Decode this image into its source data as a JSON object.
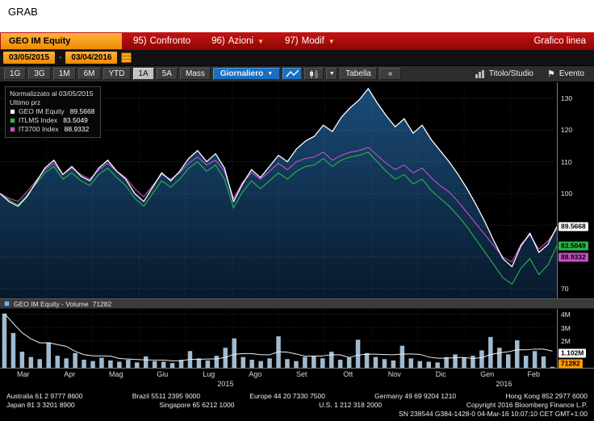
{
  "window": {
    "title": "GRAB"
  },
  "header": {
    "security": "GEO IM Equity",
    "menus": [
      {
        "key": "95)",
        "label": "Confronto"
      },
      {
        "key": "96)",
        "label": "Azioni"
      },
      {
        "key": "97)",
        "label": "Modif"
      }
    ],
    "mode": "Grafico linea"
  },
  "dates": {
    "start": "03/05/2015",
    "end": "03/04/2016"
  },
  "toolbar": {
    "ranges": [
      "1G",
      "3G",
      "1M",
      "6M",
      "YTD",
      "1A",
      "5A",
      "Mass"
    ],
    "selected_range": "1A",
    "frequency": "Giornaliero",
    "table_label": "Tabella",
    "collapse_label": "«",
    "study_label": "Titolo/Studio",
    "event_label": "Evento"
  },
  "legend": {
    "title": "Normalizzato al 03/05/2015",
    "last_label": "Ultimo prz"
  },
  "chart_data": {
    "type": "line",
    "title": "Normalizzato al 03/05/2015",
    "x_months": [
      "Mar",
      "Apr",
      "Mag",
      "Giu",
      "Lug",
      "Ago",
      "Set",
      "Ott",
      "Nov",
      "Dic",
      "Gen",
      "Feb"
    ],
    "years": [
      {
        "label": "2015",
        "pct": 40.5
      },
      {
        "label": "2016",
        "pct": 90.5
      }
    ],
    "price": {
      "ylim": [
        67,
        135
      ],
      "yticks": [
        70,
        80,
        90,
        100,
        110,
        120,
        130
      ],
      "series": [
        {
          "name": "GEO IM Equity",
          "color": "#ffffff",
          "fill": true,
          "last_label": "89.5668",
          "last_value": 89.5668,
          "values": [
            100,
            97.5,
            96,
            99,
            103.5,
            108,
            110.5,
            106,
            108.5,
            105.5,
            104,
            108,
            110.5,
            107,
            104.5,
            100,
            97.5,
            102,
            106.5,
            104,
            107,
            111,
            113.5,
            110,
            112.5,
            108,
            97.5,
            103,
            107.5,
            105,
            108.5,
            112,
            110,
            114,
            116.5,
            118,
            121.5,
            119.5,
            124,
            127,
            129.5,
            133,
            128.5,
            124.5,
            121,
            123.5,
            119,
            121.5,
            117,
            113.5,
            110,
            106,
            101.5,
            96.5,
            91,
            85,
            79.5,
            77,
            83.5,
            87.5,
            81.5,
            84,
            89.5668
          ]
        },
        {
          "name": "ITLMS Index",
          "color": "#2bb54a",
          "fill": false,
          "last_label": "83.5049",
          "last_value": 83.5049,
          "values": [
            100,
            98,
            96.5,
            99.5,
            103,
            106.5,
            108.5,
            104.5,
            106.5,
            104,
            102.5,
            106,
            108,
            105,
            102.5,
            98.5,
            96,
            100,
            104,
            102,
            104.5,
            108,
            110,
            107,
            109,
            104.5,
            95.5,
            100.5,
            104,
            101.5,
            104,
            106.5,
            104.5,
            107,
            108.5,
            109,
            111,
            108.5,
            110.5,
            111.5,
            112,
            113,
            110,
            107,
            104.5,
            106,
            103,
            104.5,
            101,
            98.5,
            96,
            93,
            89.5,
            85.5,
            81.5,
            77.5,
            73.5,
            71.5,
            76.5,
            79.5,
            74.5,
            77.5,
            83.5049
          ]
        },
        {
          "name": "IT3700 Index",
          "color": "#c94fc9",
          "fill": false,
          "last_label": "88.9332",
          "last_value": 88.9332,
          "values": [
            100,
            98.5,
            97.5,
            100.5,
            104,
            107.5,
            109.5,
            106,
            108,
            106,
            104.5,
            107.5,
            109.5,
            107,
            105,
            101.5,
            99,
            102.5,
            106,
            104.5,
            106.5,
            109.5,
            111.5,
            109,
            110.5,
            107,
            98.5,
            103.5,
            106.5,
            104.5,
            107,
            109.5,
            107.5,
            110,
            111,
            111.5,
            113,
            110.5,
            112,
            113,
            113.5,
            114.5,
            112,
            109.5,
            107.5,
            109,
            106.5,
            108,
            105,
            102.5,
            100.5,
            97.5,
            94,
            90.5,
            87,
            83.5,
            80,
            78.5,
            84,
            87,
            82.5,
            85,
            88.9332
          ]
        }
      ]
    },
    "volume": {
      "title": "GEO IM Equity - Volume",
      "last": "71282",
      "last_value": 71282,
      "avg_label": "1.102M",
      "avg_value": 1102000,
      "ylim": [
        0,
        4400000
      ],
      "yticks": [
        {
          "v": 1000000,
          "label": "1M"
        },
        {
          "v": 2000000,
          "label": "2M"
        },
        {
          "v": 3000000,
          "label": "3M"
        },
        {
          "v": 4000000,
          "label": "4M"
        }
      ],
      "bars": [
        4050000,
        2600000,
        1200000,
        800000,
        650000,
        1900000,
        900000,
        700000,
        1100000,
        600000,
        500000,
        750000,
        550000,
        450000,
        600000,
        400000,
        850000,
        500000,
        450000,
        350000,
        600000,
        1250000,
        700000,
        550000,
        900000,
        1500000,
        2200000,
        800000,
        600000,
        500000,
        700000,
        2350000,
        650000,
        500000,
        800000,
        900000,
        700000,
        1200000,
        600000,
        750000,
        2100000,
        1100000,
        800000,
        650000,
        550000,
        1650000,
        700000,
        500000,
        450000,
        400000,
        800000,
        1000000,
        750000,
        900000,
        1300000,
        2300000,
        1500000,
        1000000,
        2050000,
        900000,
        1250000,
        850000,
        71282
      ]
    }
  },
  "footer": {
    "line1": [
      "Australia 61 2 9777 8600",
      "Brazil 5511 2395 9000",
      "Europe 44 20 7330 7500",
      "Germany 49 69 9204 1210",
      "Hong Kong 852 2977 6000"
    ],
    "line2": [
      "Japan 81 3 3201 8900",
      "Singapore 65 6212 1000",
      "U.S. 1 212 318 2000",
      "Copyright 2016 Bloomberg Finance L.P."
    ],
    "sn": "SN 238544 G384-1428-0 04-Mar-16 10:07:10 CET GMT+1:00"
  }
}
